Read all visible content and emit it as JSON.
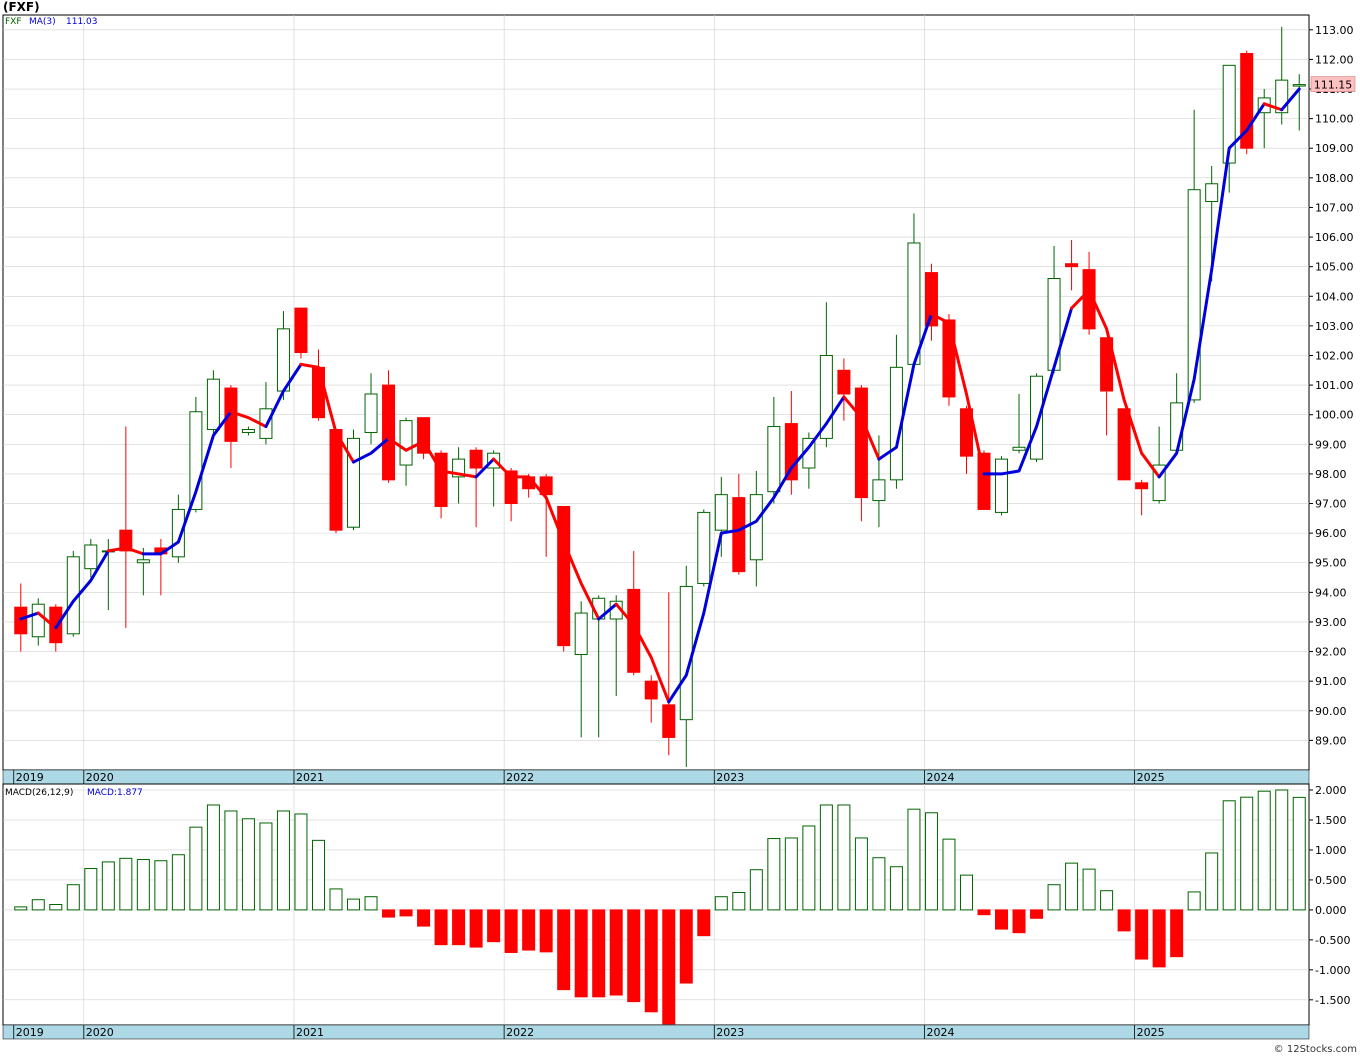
{
  "header": {
    "symbol_title": "(FXF)"
  },
  "footer": {
    "watermark": "© 12Stocks.com"
  },
  "colors": {
    "up_candle": "#006400",
    "down_candle": "#ff0000",
    "ma_rising": "#0000dd",
    "ma_falling": "#ff0000",
    "macd_positive": "#006400",
    "macd_negative": "#ff0000",
    "axis_band": "#add8e6",
    "last_price_box": "#ffc0c0"
  },
  "chart_data": [
    {
      "type": "candlestick",
      "legend": {
        "symbol": "FXF",
        "ma_label": "MA(3)",
        "ma_value": "111.03"
      },
      "last_price_label": "111.15",
      "ylim": [
        88.0,
        113.5
      ],
      "y_ticks": [
        "89.00",
        "90.00",
        "91.00",
        "92.00",
        "93.00",
        "94.00",
        "95.00",
        "96.00",
        "97.00",
        "98.00",
        "99.00",
        "100.00",
        "101.00",
        "102.00",
        "103.00",
        "104.00",
        "105.00",
        "106.00",
        "107.00",
        "108.00",
        "109.00",
        "110.00",
        "111.00",
        "112.00",
        "113.00"
      ],
      "x_ticks": [
        {
          "label": "2019",
          "i": -0.4
        },
        {
          "label": "2020",
          "i": 3.6
        },
        {
          "label": "2021",
          "i": 15.6
        },
        {
          "label": "2022",
          "i": 27.6
        },
        {
          "label": "2023",
          "i": 39.6
        },
        {
          "label": "2024",
          "i": 51.6
        },
        {
          "label": "2025",
          "i": 63.6
        }
      ],
      "candles": [
        {
          "o": 93.5,
          "h": 94.3,
          "l": 92.0,
          "c": 92.6
        },
        {
          "o": 92.5,
          "h": 93.8,
          "l": 92.2,
          "c": 93.6
        },
        {
          "o": 93.5,
          "h": 93.6,
          "l": 92.0,
          "c": 92.3
        },
        {
          "o": 92.6,
          "h": 95.4,
          "l": 92.5,
          "c": 95.2
        },
        {
          "o": 94.8,
          "h": 95.8,
          "l": 94.5,
          "c": 95.6
        },
        {
          "o": 95.4,
          "h": 95.8,
          "l": 93.4,
          "c": 95.4
        },
        {
          "o": 96.1,
          "h": 99.6,
          "l": 92.8,
          "c": 95.4
        },
        {
          "o": 95.0,
          "h": 95.5,
          "l": 93.9,
          "c": 95.1
        },
        {
          "o": 95.5,
          "h": 95.8,
          "l": 93.9,
          "c": 95.3
        },
        {
          "o": 95.2,
          "h": 97.3,
          "l": 95.0,
          "c": 96.8
        },
        {
          "o": 96.8,
          "h": 100.6,
          "l": 96.7,
          "c": 100.1
        },
        {
          "o": 99.5,
          "h": 101.5,
          "l": 99.2,
          "c": 101.2
        },
        {
          "o": 100.9,
          "h": 101.0,
          "l": 98.2,
          "c": 99.1
        },
        {
          "o": 99.4,
          "h": 99.6,
          "l": 99.3,
          "c": 99.5
        },
        {
          "o": 99.2,
          "h": 101.1,
          "l": 99.0,
          "c": 100.2
        },
        {
          "o": 100.8,
          "h": 103.5,
          "l": 100.5,
          "c": 102.9
        },
        {
          "o": 103.6,
          "h": 103.6,
          "l": 101.9,
          "c": 102.1
        },
        {
          "o": 101.6,
          "h": 102.2,
          "l": 99.8,
          "c": 99.9
        },
        {
          "o": 99.5,
          "h": 99.5,
          "l": 96.0,
          "c": 96.1
        },
        {
          "o": 96.2,
          "h": 99.5,
          "l": 96.1,
          "c": 99.2
        },
        {
          "o": 99.4,
          "h": 101.4,
          "l": 99.0,
          "c": 100.7
        },
        {
          "o": 101.0,
          "h": 101.5,
          "l": 97.7,
          "c": 97.8
        },
        {
          "o": 98.3,
          "h": 99.9,
          "l": 97.6,
          "c": 99.8
        },
        {
          "o": 99.9,
          "h": 99.9,
          "l": 98.5,
          "c": 98.7
        },
        {
          "o": 98.7,
          "h": 98.8,
          "l": 96.5,
          "c": 96.9
        },
        {
          "o": 97.9,
          "h": 98.9,
          "l": 97.0,
          "c": 98.5
        },
        {
          "o": 98.8,
          "h": 98.9,
          "l": 96.2,
          "c": 98.2
        },
        {
          "o": 98.2,
          "h": 98.8,
          "l": 96.9,
          "c": 98.7
        },
        {
          "o": 98.1,
          "h": 98.2,
          "l": 96.4,
          "c": 97.0
        },
        {
          "o": 97.9,
          "h": 98.0,
          "l": 97.2,
          "c": 97.5
        },
        {
          "o": 97.9,
          "h": 98.0,
          "l": 95.2,
          "c": 97.3
        },
        {
          "o": 96.9,
          "h": 96.9,
          "l": 92.0,
          "c": 92.2
        },
        {
          "o": 91.9,
          "h": 93.7,
          "l": 89.1,
          "c": 93.3
        },
        {
          "o": 93.1,
          "h": 93.9,
          "l": 89.1,
          "c": 93.8
        },
        {
          "o": 93.1,
          "h": 93.9,
          "l": 90.5,
          "c": 93.7
        },
        {
          "o": 94.1,
          "h": 95.4,
          "l": 91.2,
          "c": 91.3
        },
        {
          "o": 91.0,
          "h": 91.2,
          "l": 89.6,
          "c": 90.4
        },
        {
          "o": 90.2,
          "h": 94.0,
          "l": 88.5,
          "c": 89.1
        },
        {
          "o": 89.7,
          "h": 94.9,
          "l": 88.1,
          "c": 94.2
        },
        {
          "o": 94.3,
          "h": 96.8,
          "l": 94.2,
          "c": 96.7
        },
        {
          "o": 96.1,
          "h": 97.9,
          "l": 95.2,
          "c": 97.3
        },
        {
          "o": 97.2,
          "h": 98.0,
          "l": 94.6,
          "c": 94.7
        },
        {
          "o": 95.1,
          "h": 98.1,
          "l": 94.2,
          "c": 97.3
        },
        {
          "o": 97.4,
          "h": 100.6,
          "l": 97.0,
          "c": 99.6
        },
        {
          "o": 99.7,
          "h": 100.8,
          "l": 97.3,
          "c": 97.8
        },
        {
          "o": 98.2,
          "h": 99.4,
          "l": 97.5,
          "c": 99.2
        },
        {
          "o": 99.2,
          "h": 103.8,
          "l": 98.9,
          "c": 102.0
        },
        {
          "o": 101.5,
          "h": 101.9,
          "l": 99.8,
          "c": 100.7
        },
        {
          "o": 100.9,
          "h": 101.0,
          "l": 96.4,
          "c": 97.2
        },
        {
          "o": 97.1,
          "h": 99.3,
          "l": 96.2,
          "c": 97.8
        },
        {
          "o": 97.8,
          "h": 102.7,
          "l": 97.5,
          "c": 101.6
        },
        {
          "o": 101.7,
          "h": 106.8,
          "l": 101.6,
          "c": 105.8
        },
        {
          "o": 104.8,
          "h": 105.1,
          "l": 102.5,
          "c": 103.0
        },
        {
          "o": 103.2,
          "h": 103.4,
          "l": 100.3,
          "c": 100.6
        },
        {
          "o": 100.2,
          "h": 100.3,
          "l": 98.0,
          "c": 98.6
        },
        {
          "o": 98.7,
          "h": 98.8,
          "l": 96.8,
          "c": 96.8
        },
        {
          "o": 96.7,
          "h": 98.6,
          "l": 96.6,
          "c": 98.5
        },
        {
          "o": 98.8,
          "h": 100.7,
          "l": 98.7,
          "c": 98.9
        },
        {
          "o": 98.5,
          "h": 101.4,
          "l": 98.4,
          "c": 101.3
        },
        {
          "o": 101.5,
          "h": 105.7,
          "l": 101.4,
          "c": 104.6
        },
        {
          "o": 105.1,
          "h": 105.9,
          "l": 104.2,
          "c": 105.0
        },
        {
          "o": 104.9,
          "h": 105.5,
          "l": 102.7,
          "c": 102.9
        },
        {
          "o": 102.6,
          "h": 102.6,
          "l": 99.3,
          "c": 100.8
        },
        {
          "o": 100.2,
          "h": 100.2,
          "l": 97.8,
          "c": 97.8
        },
        {
          "o": 97.7,
          "h": 97.8,
          "l": 96.6,
          "c": 97.5
        },
        {
          "o": 97.1,
          "h": 99.6,
          "l": 97.0,
          "c": 98.3
        },
        {
          "o": 98.8,
          "h": 101.4,
          "l": 98.8,
          "c": 100.4
        },
        {
          "o": 100.5,
          "h": 110.3,
          "l": 100.4,
          "c": 107.6
        },
        {
          "o": 107.2,
          "h": 108.4,
          "l": 104.5,
          "c": 107.8
        },
        {
          "o": 108.5,
          "h": 111.8,
          "l": 107.5,
          "c": 111.8
        },
        {
          "o": 112.2,
          "h": 112.3,
          "l": 108.8,
          "c": 109.0
        },
        {
          "o": 110.2,
          "h": 111.0,
          "l": 109.0,
          "c": 110.7
        },
        {
          "o": 110.2,
          "h": 113.1,
          "l": 109.8,
          "c": 111.3
        },
        {
          "o": 111.1,
          "h": 111.5,
          "l": 109.6,
          "c": 111.15
        }
      ],
      "ma": [
        93.1,
        93.3,
        92.8,
        93.7,
        94.4,
        95.4,
        95.5,
        95.3,
        95.3,
        95.7,
        97.4,
        99.3,
        100.1,
        99.9,
        99.6,
        100.8,
        101.7,
        101.6,
        99.4,
        98.4,
        98.7,
        99.2,
        98.8,
        99.1,
        98.1,
        98.0,
        97.9,
        98.5,
        97.9,
        97.9,
        97.2,
        95.7,
        94.3,
        93.1,
        93.6,
        92.9,
        91.8,
        90.3,
        91.2,
        93.3,
        96.0,
        96.1,
        96.4,
        97.2,
        98.2,
        98.9,
        99.7,
        100.6,
        99.9,
        98.5,
        98.9,
        101.7,
        103.4,
        103.1,
        100.7,
        98.0,
        98.0,
        98.1,
        99.6,
        101.6,
        103.6,
        104.2,
        102.9,
        100.5,
        98.7,
        97.9,
        98.7,
        101.2,
        104.9,
        109.0,
        109.6,
        110.5,
        110.3,
        111.0
      ],
      "ma_segments": [
        {
          "from": 0,
          "to": 1,
          "trend": "up"
        },
        {
          "from": 1,
          "to": 2,
          "trend": "down"
        },
        {
          "from": 2,
          "to": 5,
          "trend": "up"
        },
        {
          "from": 5,
          "to": 7,
          "trend": "down"
        },
        {
          "from": 7,
          "to": 12,
          "trend": "up"
        },
        {
          "from": 12,
          "to": 14,
          "trend": "down"
        },
        {
          "from": 14,
          "to": 16,
          "trend": "up"
        },
        {
          "from": 16,
          "to": 19,
          "trend": "down"
        },
        {
          "from": 19,
          "to": 21,
          "trend": "up"
        },
        {
          "from": 21,
          "to": 26,
          "trend": "down"
        },
        {
          "from": 26,
          "to": 27,
          "trend": "up"
        },
        {
          "from": 27,
          "to": 33,
          "trend": "down"
        },
        {
          "from": 33,
          "to": 34,
          "trend": "up"
        },
        {
          "from": 34,
          "to": 37,
          "trend": "down"
        },
        {
          "from": 37,
          "to": 47,
          "trend": "up"
        },
        {
          "from": 47,
          "to": 49,
          "trend": "down"
        },
        {
          "from": 49,
          "to": 52,
          "trend": "up"
        },
        {
          "from": 52,
          "to": 55,
          "trend": "down"
        },
        {
          "from": 55,
          "to": 60,
          "trend": "up"
        },
        {
          "from": 60,
          "to": 65,
          "trend": "down"
        },
        {
          "from": 65,
          "to": 71,
          "trend": "up"
        },
        {
          "from": 71,
          "to": 72,
          "trend": "down"
        },
        {
          "from": 72,
          "to": 73,
          "trend": "up"
        }
      ]
    },
    {
      "type": "bar",
      "legend": {
        "label": "MACD(26,12,9)",
        "value_label": "MACD:1.877"
      },
      "ylim": [
        -1.92,
        2.1
      ],
      "y_ticks": [
        "2.000",
        "1.500",
        "1.000",
        "0.500",
        "0.000",
        "-0.500",
        "-1.000",
        "-1.500"
      ],
      "x_ticks": [
        {
          "label": "2019",
          "i": -0.4
        },
        {
          "label": "2020",
          "i": 3.6
        },
        {
          "label": "2021",
          "i": 15.6
        },
        {
          "label": "2022",
          "i": 27.6
        },
        {
          "label": "2023",
          "i": 39.6
        },
        {
          "label": "2024",
          "i": 51.6
        },
        {
          "label": "2025",
          "i": 63.6
        }
      ],
      "values": [
        0.05,
        0.17,
        0.09,
        0.42,
        0.69,
        0.8,
        0.86,
        0.84,
        0.82,
        0.92,
        1.38,
        1.75,
        1.65,
        1.52,
        1.45,
        1.65,
        1.6,
        1.16,
        0.35,
        0.18,
        0.22,
        -0.12,
        -0.1,
        -0.27,
        -0.58,
        -0.58,
        -0.62,
        -0.53,
        -0.71,
        -0.67,
        -0.7,
        -1.33,
        -1.45,
        -1.45,
        -1.42,
        -1.53,
        -1.7,
        -1.9,
        -1.22,
        -0.43,
        0.22,
        0.29,
        0.67,
        1.19,
        1.2,
        1.4,
        1.75,
        1.75,
        1.2,
        0.87,
        0.72,
        1.68,
        1.62,
        1.18,
        0.58,
        -0.08,
        -0.32,
        -0.38,
        -0.14,
        0.42,
        0.78,
        0.68,
        0.32,
        -0.35,
        -0.82,
        -0.95,
        -0.78,
        0.3,
        0.95,
        1.82,
        1.88,
        1.98,
        2.0,
        1.877
      ]
    }
  ]
}
